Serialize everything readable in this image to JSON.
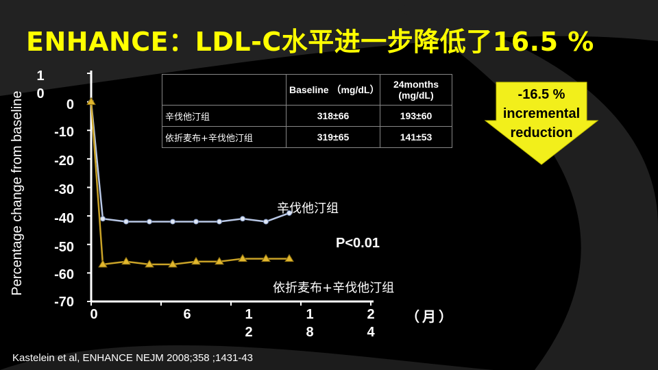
{
  "title": "ENHANCE：LDL-C水平进一步降低了16.5 %",
  "colors": {
    "background": "#000000",
    "title": "#ffff00",
    "simva_series": "#b9c8e6",
    "ezet_series": "#c9a227",
    "callout": "#f2ef1b"
  },
  "chart_data": {
    "type": "line",
    "ylabel": "Percentage change from baseline",
    "y_ticks": [
      "1 0",
      "0",
      "-10",
      "-20",
      "-30",
      "-40",
      "-50",
      "-60",
      "-70"
    ],
    "x_ticks": [
      "0",
      "6",
      "1 2",
      "1 8",
      "2 4"
    ],
    "x_unit": "（月）",
    "ylim": [
      -70,
      10
    ],
    "xlim": [
      0,
      24
    ],
    "series": [
      {
        "name": "辛伐他汀组",
        "x": [
          0,
          1,
          3,
          5,
          7,
          9,
          11,
          13,
          15,
          17
        ],
        "values": [
          0,
          -41,
          -42,
          -42,
          -42,
          -42,
          -42,
          -41,
          -42,
          -39
        ]
      },
      {
        "name": "依折麦布+辛伐他汀组",
        "x": [
          0,
          1,
          3,
          5,
          7,
          9,
          11,
          13,
          15,
          17
        ],
        "values": [
          0,
          -57,
          -56,
          -57,
          -57,
          -56,
          -56,
          -55,
          -55,
          -55
        ]
      }
    ],
    "annotations": [
      "P<0.01"
    ]
  },
  "table": {
    "headers": [
      "",
      "Baseline （mg/dL）",
      "24months (mg/dL)"
    ],
    "rows": [
      {
        "label": "辛伐他汀组",
        "baseline": "318±66",
        "m24": "193±60"
      },
      {
        "label": "依折麦布+辛伐他汀组",
        "baseline": "319±65",
        "m24": "141±53"
      }
    ]
  },
  "callout": {
    "line1": "-16.5 %",
    "line2": "incremental",
    "line3": "reduction"
  },
  "citation": "Kastelein et al, ENHANCE NEJM 2008;358 ;1431-43"
}
